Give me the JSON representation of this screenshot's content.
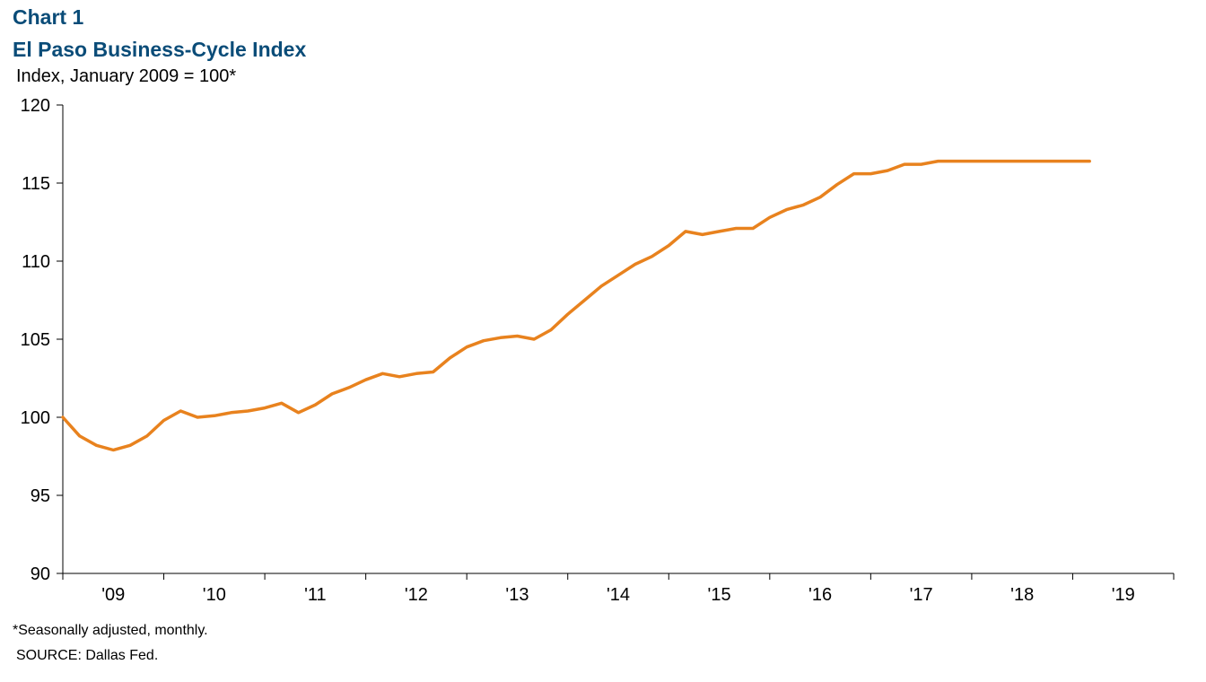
{
  "header": {
    "chart_label": "Chart 1",
    "title": "El Paso Business-Cycle Index",
    "y_unit": "Index, January 2009 = 100*"
  },
  "footer": {
    "footnote": "*Seasonally adjusted, monthly.",
    "source": "SOURCE: Dallas Fed."
  },
  "chart_data": {
    "type": "line",
    "title": "El Paso Business-Cycle Index",
    "ylabel": "Index, January 2009 = 100*",
    "xlabel": "",
    "ylim": [
      90,
      120
    ],
    "yticks": [
      90,
      95,
      100,
      105,
      110,
      115,
      120
    ],
    "xlim": [
      "2009-01",
      "2019-12"
    ],
    "categories": [
      "'09",
      "'10",
      "'11",
      "'12",
      "'13",
      "'14",
      "'15",
      "'16",
      "'17",
      "'18",
      "'19"
    ],
    "grid": false,
    "line_color": "#e8821e",
    "series": [
      {
        "x": [
          "2009-01",
          "2009-03",
          "2009-05",
          "2009-07",
          "2009-09",
          "2009-11",
          "2010-01",
          "2010-03",
          "2010-05",
          "2010-07",
          "2010-09",
          "2010-11",
          "2011-01",
          "2011-03",
          "2011-05",
          "2011-07",
          "2011-09",
          "2011-11",
          "2012-01",
          "2012-03",
          "2012-05",
          "2012-07",
          "2012-09",
          "2012-11",
          "2013-01",
          "2013-03",
          "2013-05",
          "2013-07",
          "2013-09",
          "2013-11",
          "2014-01",
          "2014-03",
          "2014-05",
          "2014-07",
          "2014-09",
          "2014-11",
          "2015-01",
          "2015-03",
          "2015-05",
          "2015-07",
          "2015-09",
          "2015-11",
          "2016-01",
          "2016-03",
          "2016-05",
          "2016-07",
          "2016-09",
          "2016-11",
          "2017-01",
          "2017-03",
          "2017-05",
          "2017-07",
          "2017-09",
          "2017-11",
          "2018-01",
          "2018-03",
          "2018-05",
          "2018-07",
          "2018-09",
          "2018-11",
          "2019-01",
          "2019-03"
        ],
        "values": [
          100.0,
          98.8,
          98.2,
          97.9,
          98.2,
          98.8,
          99.8,
          100.4,
          100.0,
          100.1,
          100.3,
          100.4,
          100.6,
          100.9,
          100.3,
          100.8,
          101.5,
          101.9,
          102.4,
          102.8,
          102.6,
          102.8,
          102.9,
          103.8,
          104.5,
          104.9,
          105.1,
          105.2,
          105.0,
          105.6,
          106.6,
          107.5,
          108.4,
          109.1,
          109.8,
          110.3,
          111.0,
          111.9,
          111.7,
          111.9,
          112.1,
          112.1,
          112.8,
          113.3,
          113.6,
          114.1,
          114.9,
          115.6,
          115.6,
          115.8,
          116.2,
          116.2,
          116.4,
          116.4,
          116.4,
          116.4,
          116.4,
          116.4,
          116.4,
          116.4,
          116.4,
          116.4
        ]
      }
    ]
  }
}
